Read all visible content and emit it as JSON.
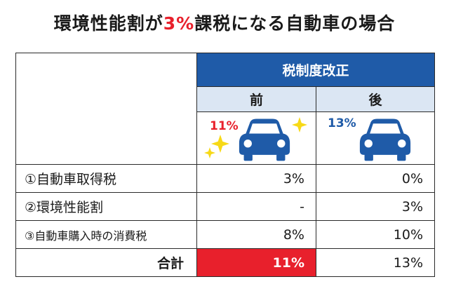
{
  "title": {
    "pre": "環境性能割が",
    "highlight": "3%",
    "post": "課税になる自動車の場合"
  },
  "table": {
    "group_header": "税制度改正",
    "col_before": "前",
    "col_after": "後",
    "car_before_label": "11%",
    "car_after_label": "13%",
    "rows": [
      {
        "label": "①自動車取得税",
        "before": "3%",
        "after": "0%"
      },
      {
        "label": "②環境性能割",
        "before": "-",
        "after": "3%"
      },
      {
        "label": "③自動車購入時の消費税",
        "before": "8%",
        "after": "10%"
      }
    ],
    "total": {
      "label": "合計",
      "before": "11%",
      "after": "13%"
    }
  },
  "colors": {
    "accent": "#1f5ba8",
    "highlight": "#e8202c",
    "subheader": "#dbe6f3",
    "sparkle": "#f7d917"
  },
  "icons": [
    "car-icon",
    "sparkle-icon"
  ]
}
